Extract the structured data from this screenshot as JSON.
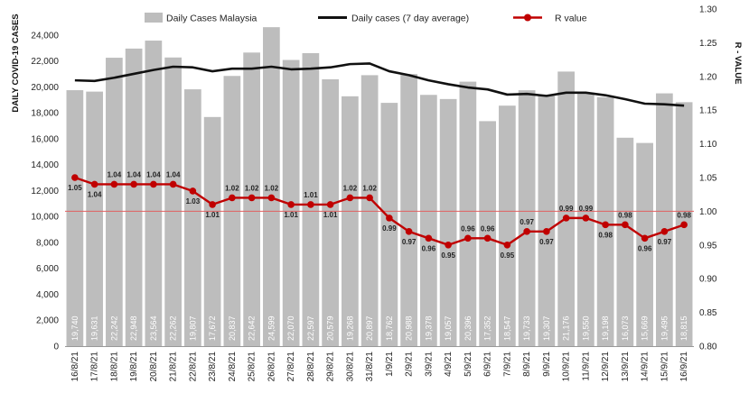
{
  "chart_data": {
    "type": "bar",
    "title": "",
    "categories": [
      "16/8/21",
      "17/8/21",
      "18/8/21",
      "19/8/21",
      "20/8/21",
      "21/8/21",
      "22/8/21",
      "23/8/21",
      "24/8/21",
      "25/8/21",
      "26/8/21",
      "27/8/21",
      "28/8/21",
      "29/8/21",
      "30/8/21",
      "31/8/21",
      "1/9/21",
      "2/9/21",
      "3/9/21",
      "4/9/21",
      "5/9/21",
      "6/9/21",
      "7/9/21",
      "8/9/21",
      "9/9/21",
      "10/9/21",
      "11/9/21",
      "12/9/21",
      "13/9/21",
      "14/9/21",
      "15/9/21",
      "16/9/21"
    ],
    "series": [
      {
        "name": "Daily Cases Malaysia",
        "type": "bar",
        "axis": "left",
        "color": "#bdbdbd",
        "values": [
          19740,
          19631,
          22242,
          22948,
          23564,
          22262,
          19807,
          17672,
          20837,
          22642,
          24599,
          22070,
          22597,
          20579,
          19268,
          20897,
          18762,
          20988,
          19378,
          19057,
          20396,
          17352,
          18547,
          19733,
          19307,
          21176,
          19550,
          19198,
          16073,
          15669,
          19495,
          18815
        ],
        "labels": [
          "19,740",
          "19,631",
          "22,242",
          "22,948",
          "23,564",
          "22,262",
          "19,807",
          "17,672",
          "20,837",
          "22,642",
          "24,599",
          "22,070",
          "22,597",
          "20,579",
          "19,268",
          "20,897",
          "18,762",
          "20,988",
          "19,378",
          "19,057",
          "20,396",
          "17,352",
          "18,547",
          "19,733",
          "19,307",
          "21,176",
          "19,550",
          "19,198",
          "16,073",
          "15,669",
          "19,495",
          "18,815"
        ]
      },
      {
        "name": "Daily cases (7 day average)",
        "type": "line",
        "axis": "left",
        "color": "#111111",
        "values": [
          20500,
          20450,
          20700,
          21000,
          21300,
          21550,
          21500,
          21200,
          21400,
          21400,
          21550,
          21350,
          21400,
          21500,
          21750,
          21800,
          21200,
          20900,
          20500,
          20200,
          19950,
          19800,
          19400,
          19450,
          19300,
          19550,
          19550,
          19350,
          19050,
          18700,
          18650,
          18550
        ]
      },
      {
        "name": "R value",
        "type": "line",
        "axis": "right",
        "color": "#c00000",
        "values": [
          1.05,
          1.04,
          1.04,
          1.04,
          1.04,
          1.04,
          1.03,
          1.01,
          1.02,
          1.02,
          1.02,
          1.01,
          1.01,
          1.01,
          1.02,
          1.02,
          0.99,
          0.97,
          0.96,
          0.95,
          0.96,
          0.96,
          0.95,
          0.97,
          0.97,
          0.99,
          0.99,
          0.98,
          0.98,
          0.96,
          0.97,
          0.98
        ],
        "labels": [
          "1.05",
          "1.04",
          "1.04",
          "1.04",
          "1.04",
          "1.04",
          "1.03",
          "1.01",
          "1.02",
          "1.02",
          "1.02",
          "1.01",
          "1.01",
          "1.01",
          "1.02",
          "1.02",
          "0.99",
          "0.97",
          "0.96",
          "0.95",
          "0.96",
          "0.96",
          "0.95",
          "0.97",
          "0.97",
          "0.99",
          "0.99",
          "0.98",
          "0.98",
          "0.96",
          "0.97",
          "0.98"
        ]
      }
    ],
    "ylabel": "DAILY COVID-19 CASES",
    "ylim": [
      0,
      26000
    ],
    "yticks": [
      0,
      2000,
      4000,
      6000,
      8000,
      10000,
      12000,
      14000,
      16000,
      18000,
      20000,
      22000,
      24000
    ],
    "ytick_labels": [
      "0",
      "2,000",
      "4,000",
      "6,000",
      "8,000",
      "10,000",
      "12,000",
      "14,000",
      "16,000",
      "18,000",
      "20,000",
      "22,000",
      "24,000"
    ],
    "y2label": "R - VALUE",
    "y2lim": [
      0.8,
      1.3
    ],
    "y2ticks": [
      0.8,
      0.85,
      0.9,
      0.95,
      1.0,
      1.05,
      1.1,
      1.15,
      1.2,
      1.25,
      1.3
    ],
    "y2tick_labels": [
      "0.80",
      "0.85",
      "0.90",
      "0.95",
      "1.00",
      "1.05",
      "1.10",
      "1.15",
      "1.20",
      "1.25",
      "1.30"
    ],
    "reference_line": {
      "axis": "right",
      "value": 1.0,
      "color": "#e06060"
    },
    "legend_position": "top",
    "grid": false
  }
}
